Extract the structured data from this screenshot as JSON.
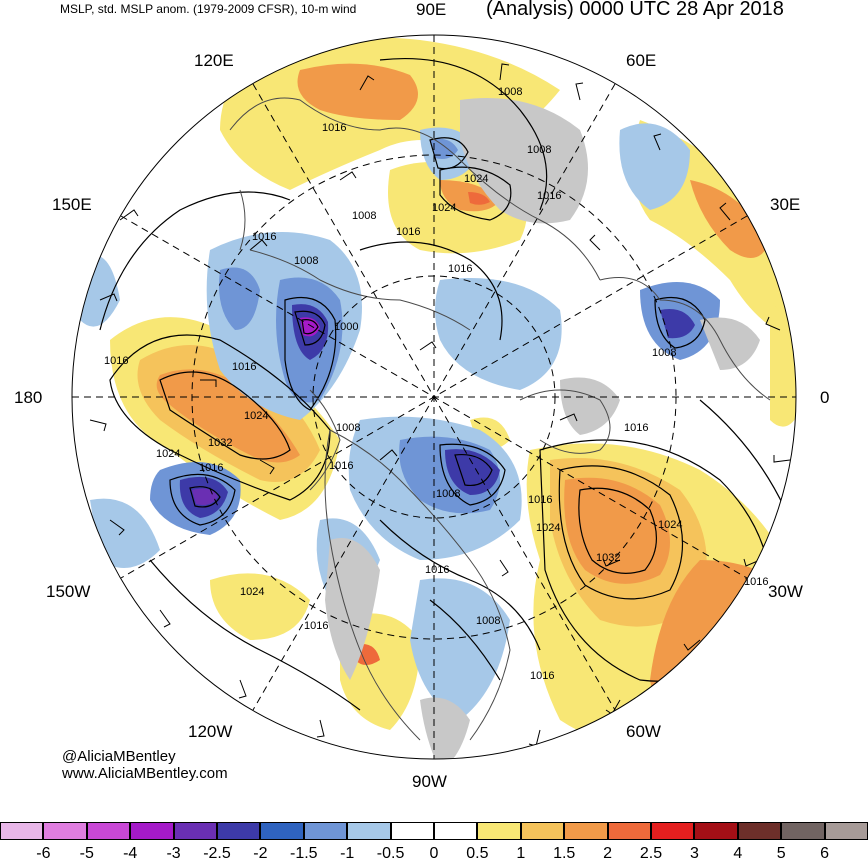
{
  "header": {
    "left_title": "MSLP, std. MSLP anom. (1979-2009 CFSR), 10-m wind",
    "right_title": "(Analysis) 0000 UTC 28 Apr 2018"
  },
  "credit": {
    "handle": "@AliciaMBentley",
    "url": "www.AliciaMBentley.com"
  },
  "longitude_labels": {
    "lon_90e": "90E",
    "lon_120e": "120E",
    "lon_60e": "60E",
    "lon_150e": "150E",
    "lon_30e": "30E",
    "lon_180": "180",
    "lon_0": "0",
    "lon_150w": "150W",
    "lon_30w": "30W",
    "lon_120w": "120W",
    "lon_60w": "60W",
    "lon_90w": "90W"
  },
  "isobar_labels": [
    {
      "id": "i1",
      "text": "1008"
    },
    {
      "id": "i2",
      "text": "1016"
    },
    {
      "id": "i3",
      "text": "1008"
    },
    {
      "id": "i4",
      "text": "1024"
    },
    {
      "id": "i5",
      "text": "1024"
    },
    {
      "id": "i6",
      "text": "1016"
    },
    {
      "id": "i7",
      "text": "1008"
    },
    {
      "id": "i8",
      "text": "1016"
    },
    {
      "id": "i9",
      "text": "1016"
    },
    {
      "id": "i10",
      "text": "1016"
    },
    {
      "id": "i11",
      "text": "1008"
    },
    {
      "id": "i12",
      "text": "1000"
    },
    {
      "id": "i13",
      "text": "1016"
    },
    {
      "id": "i14",
      "text": "1016"
    },
    {
      "id": "i15",
      "text": "1024"
    },
    {
      "id": "i16",
      "text": "1032"
    },
    {
      "id": "i17",
      "text": "1024"
    },
    {
      "id": "i18",
      "text": "1016"
    },
    {
      "id": "i19",
      "text": "1008"
    },
    {
      "id": "i20",
      "text": "1016"
    },
    {
      "id": "i21",
      "text": "1008"
    },
    {
      "id": "i22",
      "text": "1016"
    },
    {
      "id": "i23",
      "text": "1008"
    },
    {
      "id": "i24",
      "text": "1016"
    },
    {
      "id": "i25",
      "text": "1024"
    },
    {
      "id": "i26",
      "text": "1024"
    },
    {
      "id": "i27",
      "text": "1032"
    },
    {
      "id": "i28",
      "text": "1024"
    },
    {
      "id": "i29",
      "text": "1016"
    },
    {
      "id": "i30",
      "text": "1016"
    },
    {
      "id": "i31",
      "text": "1008"
    },
    {
      "id": "i32",
      "text": "1016"
    },
    {
      "id": "i33",
      "text": "1016"
    }
  ],
  "colorbar": {
    "swatches": [
      {
        "color": "#e9b7e9"
      },
      {
        "color": "#e07ee0"
      },
      {
        "color": "#c948d6"
      },
      {
        "color": "#a51ac9"
      },
      {
        "color": "#6a2fb3"
      },
      {
        "color": "#3d3aa8"
      },
      {
        "color": "#2f63bf"
      },
      {
        "color": "#6f95d6"
      },
      {
        "color": "#a6c8e8"
      },
      {
        "color": "#ffffff"
      },
      {
        "color": "#ffffff"
      },
      {
        "color": "#f8e775"
      },
      {
        "color": "#f5c35b"
      },
      {
        "color": "#f19a49"
      },
      {
        "color": "#ee6a3b"
      },
      {
        "color": "#e41f1f"
      },
      {
        "color": "#a40f16"
      },
      {
        "color": "#6d2f2a"
      },
      {
        "color": "#716462"
      },
      {
        "color": "#a79b98"
      }
    ],
    "labels": [
      "-6",
      "-5",
      "-4",
      "-3",
      "-2.5",
      "-2",
      "-1.5",
      "-1",
      "-0.5",
      "0",
      "0.5",
      "1",
      "1.5",
      "2",
      "2.5",
      "3",
      "4",
      "5",
      "6"
    ]
  }
}
